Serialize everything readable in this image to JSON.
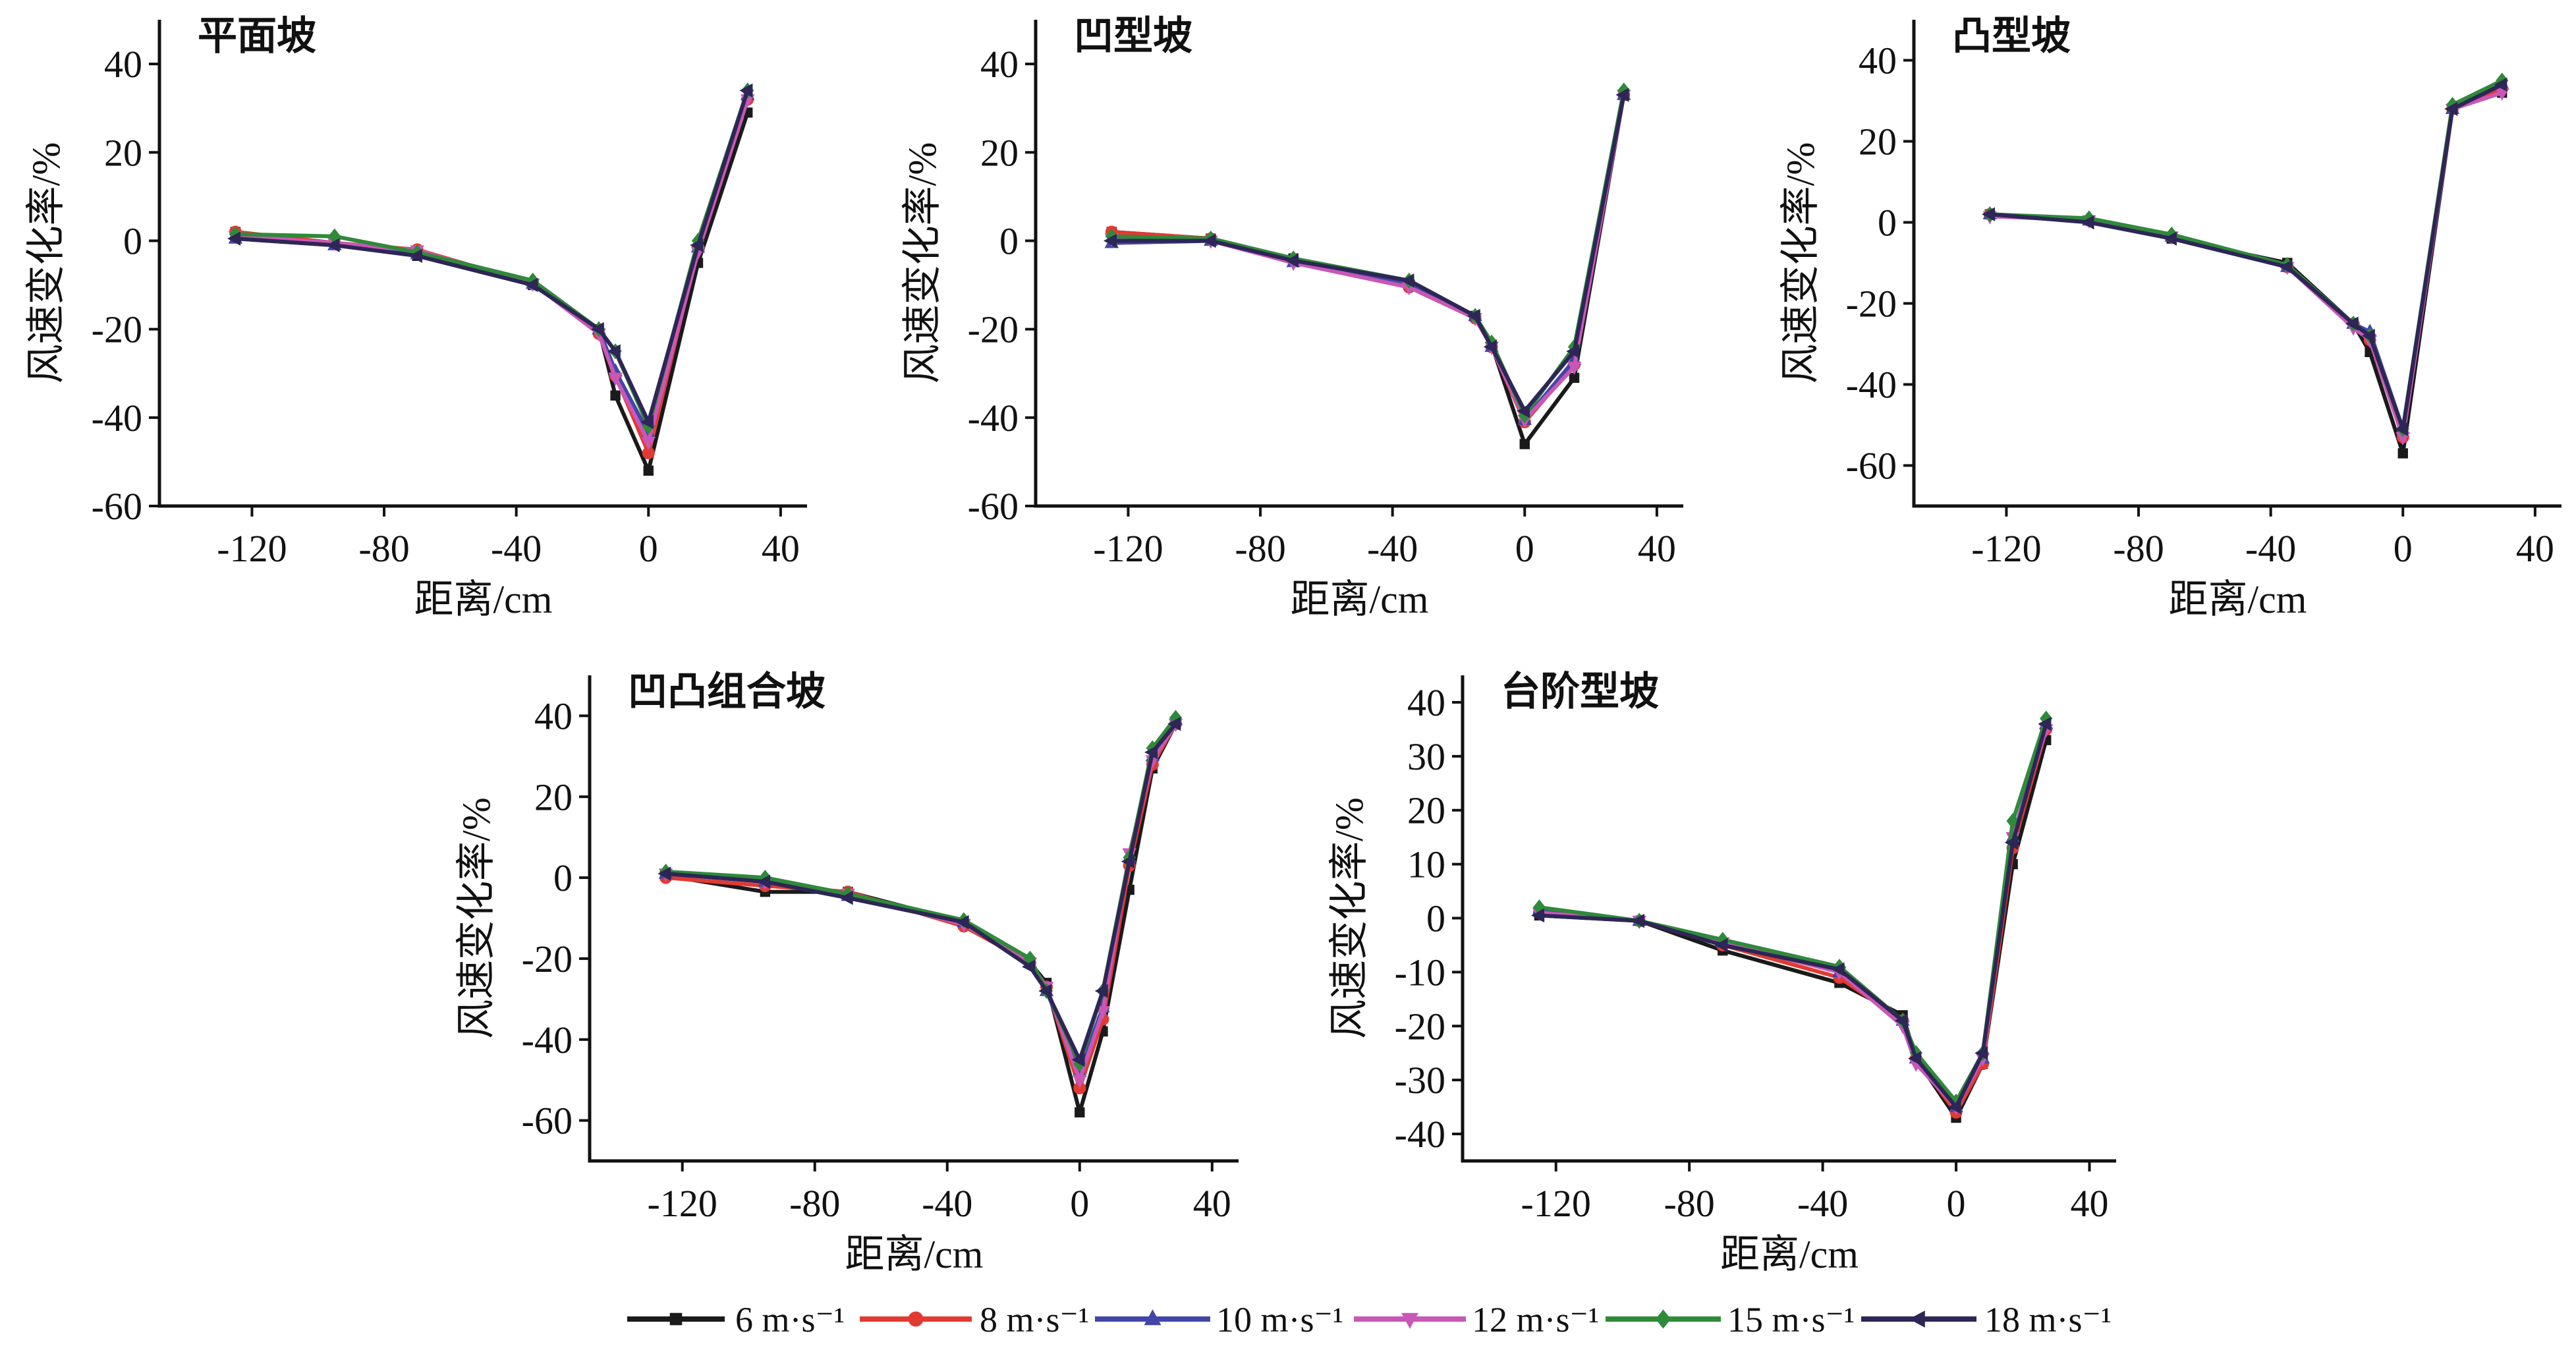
{
  "legend": {
    "items": [
      {
        "label": "6 m·s⁻¹",
        "color": "#1a1a1a",
        "marker": "square"
      },
      {
        "label": "8 m·s⁻¹",
        "color": "#e23a32",
        "marker": "circle"
      },
      {
        "label": "10 m·s⁻¹",
        "color": "#4346a8",
        "marker": "triangle-up"
      },
      {
        "label": "12 m·s⁻¹",
        "color": "#c957b6",
        "marker": "triangle-down"
      },
      {
        "label": "15 m·s⁻¹",
        "color": "#2f8a3a",
        "marker": "diamond"
      },
      {
        "label": "18 m·s⁻¹",
        "color": "#2d2656",
        "marker": "triangle-left"
      }
    ]
  },
  "chart_data": [
    {
      "type": "line",
      "title": "平面坡",
      "xlabel": "距离/cm",
      "ylabel": "风速变化率/%",
      "xlim": [
        -148,
        48
      ],
      "ylim": [
        -60,
        50
      ],
      "xticks": [
        -120,
        -80,
        -40,
        0,
        40
      ],
      "yticks": [
        -60,
        -40,
        -20,
        0,
        20,
        40
      ],
      "x": [
        -125,
        -95,
        -70,
        -35,
        -15,
        -10,
        0,
        15,
        30
      ],
      "series": [
        {
          "name": "6 m·s⁻¹",
          "values": [
            2,
            -0.5,
            -3.4,
            -10,
            -20,
            -35,
            -52,
            -5,
            29
          ]
        },
        {
          "name": "8 m·s⁻¹",
          "values": [
            2,
            -0.5,
            -2,
            -9.7,
            -21,
            -30.5,
            -48,
            -1.5,
            32
          ]
        },
        {
          "name": "10 m·s⁻¹",
          "values": [
            0.5,
            -1,
            -3,
            -9.7,
            -20,
            -29.5,
            -43.5,
            -1.5,
            33
          ]
        },
        {
          "name": "12 m·s⁻¹",
          "values": [
            1,
            -0.5,
            -2.2,
            -9.7,
            -21,
            -31,
            -45.5,
            -2.5,
            32
          ]
        },
        {
          "name": "15 m·s⁻¹",
          "values": [
            1.5,
            1,
            -2.6,
            -9,
            -20,
            -25,
            -42,
            0,
            34
          ]
        },
        {
          "name": "18 m·s⁻¹",
          "values": [
            0.5,
            -1,
            -3.4,
            -10,
            -20,
            -25,
            -41,
            -1,
            34
          ]
        }
      ]
    },
    {
      "type": "line",
      "title": "凹型坡",
      "xlabel": "距离/cm",
      "ylabel": "风速变化率/%",
      "xlim": [
        -148,
        48
      ],
      "ylim": [
        -60,
        50
      ],
      "xticks": [
        -120,
        -80,
        -40,
        0,
        40
      ],
      "yticks": [
        -60,
        -40,
        -20,
        0,
        20,
        40
      ],
      "x": [
        -125,
        -95,
        -70,
        -35,
        -15,
        -10,
        0,
        15,
        30
      ],
      "series": [
        {
          "name": "6 m·s⁻¹",
          "values": [
            2,
            0.5,
            -4,
            -9.5,
            -17,
            -23.5,
            -46,
            -31,
            33
          ]
        },
        {
          "name": "8 m·s⁻¹",
          "values": [
            2,
            0.5,
            -4.5,
            -10.5,
            -17.5,
            -24,
            -41,
            -28,
            33
          ]
        },
        {
          "name": "10 m·s⁻¹",
          "values": [
            -0.5,
            0,
            -4.8,
            -9.5,
            -17,
            -24,
            -40.5,
            -27,
            33
          ]
        },
        {
          "name": "12 m·s⁻¹",
          "values": [
            0.5,
            0,
            -5,
            -10.5,
            -17.5,
            -24,
            -40.5,
            -28.5,
            33
          ]
        },
        {
          "name": "15 m·s⁻¹",
          "values": [
            1,
            0.5,
            -4,
            -9,
            -17,
            -23,
            -39.5,
            -24,
            34
          ]
        },
        {
          "name": "18 m·s⁻¹",
          "values": [
            0,
            0,
            -4.5,
            -9,
            -17,
            -24,
            -38.5,
            -25,
            33
          ]
        }
      ]
    },
    {
      "type": "line",
      "title": "凸型坡",
      "xlabel": "距离/cm",
      "ylabel": "风速变化率/%",
      "xlim": [
        -148,
        48
      ],
      "ylim": [
        -70,
        50
      ],
      "xticks": [
        -120,
        -80,
        -40,
        0,
        40
      ],
      "yticks": [
        -60,
        -40,
        -20,
        0,
        20,
        40
      ],
      "x": [
        -125,
        -95,
        -70,
        -35,
        -15,
        -10,
        0,
        15,
        30
      ],
      "series": [
        {
          "name": "6 m·s⁻¹",
          "values": [
            2,
            0.5,
            -4,
            -10,
            -25,
            -32,
            -57,
            28,
            32
          ]
        },
        {
          "name": "8 m·s⁻¹",
          "values": [
            2,
            0.5,
            -3.5,
            -11,
            -25,
            -29,
            -53,
            28,
            33
          ]
        },
        {
          "name": "10 m·s⁻¹",
          "values": [
            2,
            0.5,
            -3.5,
            -11,
            -25,
            -27,
            -51,
            28,
            34
          ]
        },
        {
          "name": "12 m·s⁻¹",
          "values": [
            1.5,
            0.5,
            -3.5,
            -11,
            -26,
            -29,
            -53,
            28,
            32
          ]
        },
        {
          "name": "15 m·s⁻¹",
          "values": [
            2,
            1,
            -3,
            -10.5,
            -25,
            -28,
            -51,
            29,
            35
          ]
        },
        {
          "name": "18 m·s⁻¹",
          "values": [
            2,
            0,
            -4,
            -11,
            -25,
            -28,
            -51,
            28,
            34
          ]
        }
      ]
    },
    {
      "type": "line",
      "title": "凹凸组合坡",
      "xlabel": "距离/cm",
      "ylabel": "风速变化率/%",
      "xlim": [
        -148,
        48
      ],
      "ylim": [
        -70,
        50
      ],
      "xticks": [
        -120,
        -80,
        -40,
        0,
        40
      ],
      "yticks": [
        -60,
        -40,
        -20,
        0,
        20,
        40
      ],
      "x": [
        -125,
        -95,
        -70,
        -35,
        -15,
        -10,
        0,
        7,
        15,
        22,
        29
      ],
      "series": [
        {
          "name": "6 m·s⁻¹",
          "values": [
            0.5,
            -3.5,
            -3.5,
            -11,
            -21,
            -26,
            -58,
            -38,
            -3,
            27,
            38
          ]
        },
        {
          "name": "8 m·s⁻¹",
          "values": [
            0,
            -2,
            -3.5,
            -12,
            -21,
            -27,
            -52,
            -35,
            3,
            28,
            38
          ]
        },
        {
          "name": "10 m·s⁻¹",
          "values": [
            1,
            -1,
            -4.5,
            -11,
            -21,
            -28,
            -48,
            -32,
            5,
            30,
            39
          ]
        },
        {
          "name": "12 m·s⁻¹",
          "values": [
            1,
            -1,
            -4,
            -11.5,
            -21,
            -27,
            -50,
            -33,
            6,
            29,
            38
          ]
        },
        {
          "name": "15 m·s⁻¹",
          "values": [
            1.5,
            0,
            -4,
            -10.5,
            -20,
            -28,
            -46,
            -28,
            5,
            32,
            39.5
          ]
        },
        {
          "name": "18 m·s⁻¹",
          "values": [
            1,
            -1,
            -5,
            -11,
            -22,
            -28,
            -45,
            -28,
            4,
            31,
            38
          ]
        }
      ]
    },
    {
      "type": "line",
      "title": "台阶型坡",
      "xlabel": "距离/cm",
      "ylabel": "风速变化率/%",
      "xlim": [
        -148,
        48
      ],
      "ylim": [
        -45,
        45
      ],
      "xticks": [
        -120,
        -80,
        -40,
        0,
        40
      ],
      "yticks": [
        -40,
        -30,
        -20,
        -10,
        0,
        10,
        20,
        30,
        40
      ],
      "x": [
        -125,
        -95,
        -70,
        -35,
        -16,
        -12,
        0,
        8,
        17,
        27
      ],
      "series": [
        {
          "name": "6 m·s⁻¹",
          "values": [
            0.5,
            -0.5,
            -6,
            -12,
            -18,
            -26,
            -37,
            -27,
            10,
            33
          ]
        },
        {
          "name": "8 m·s⁻¹",
          "values": [
            1,
            -0.5,
            -5,
            -11,
            -19,
            -26,
            -36,
            -27,
            13,
            35
          ]
        },
        {
          "name": "10 m·s⁻¹",
          "values": [
            1.5,
            -0.5,
            -4.5,
            -10,
            -19,
            -26,
            -35,
            -26,
            15,
            36
          ]
        },
        {
          "name": "12 m·s⁻¹",
          "values": [
            1,
            -0.5,
            -4.5,
            -10,
            -20,
            -27,
            -35,
            -26,
            15,
            35
          ]
        },
        {
          "name": "15 m·s⁻¹",
          "values": [
            2,
            -0.5,
            -4,
            -9,
            -19,
            -25,
            -34,
            -25,
            18,
            37
          ]
        },
        {
          "name": "18 m·s⁻¹",
          "values": [
            0.5,
            -0.5,
            -5,
            -9.5,
            -19,
            -26,
            -35,
            -25,
            14,
            36
          ]
        }
      ]
    }
  ]
}
